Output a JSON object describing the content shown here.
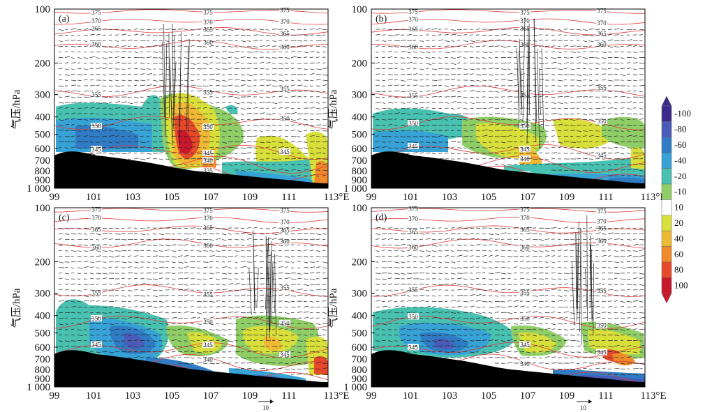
{
  "chart_data": {
    "type": "heatmap",
    "panels": [
      {
        "label": "(a)",
        "contour_labels": [
          "375",
          "370",
          "365",
          "360",
          "355",
          "350",
          "345",
          "340",
          "335"
        ]
      },
      {
        "label": "(b)",
        "contour_labels": [
          "375",
          "370",
          "365",
          "360",
          "355",
          "350",
          "345",
          "340",
          "335"
        ]
      },
      {
        "label": "(c)",
        "contour_labels": [
          "375",
          "370",
          "365",
          "360",
          "355",
          "350",
          "345",
          "340",
          "335"
        ]
      },
      {
        "label": "(d)",
        "contour_labels": [
          "375",
          "370",
          "365",
          "360",
          "355",
          "350",
          "345",
          "340",
          "335"
        ]
      }
    ],
    "x_ticks": [
      "99",
      "101",
      "103",
      "105",
      "107",
      "109",
      "111",
      "113°E"
    ],
    "x_values": [
      99,
      101,
      103,
      105,
      107,
      109,
      111,
      113
    ],
    "xlim": [
      99,
      113
    ],
    "y_ticks": [
      "100",
      "200",
      "300",
      "400",
      "500",
      "600",
      "700",
      "800",
      "900",
      "1 000"
    ],
    "y_values": [
      100,
      200,
      300,
      400,
      500,
      600,
      700,
      800,
      900,
      1000
    ],
    "ylim": [
      100,
      1000
    ],
    "y_scale": "log",
    "ylabel": "气压/hPa",
    "colorbar": {
      "labels": [
        "-100",
        "-80",
        "-60",
        "-40",
        "-20",
        "-10",
        "10",
        "20",
        "40",
        "60",
        "80",
        "100"
      ],
      "colors": [
        "#3b2a8c",
        "#4a5bb8",
        "#2f7cc4",
        "#36a2d6",
        "#49c1b1",
        "#8fce67",
        "#ffffff",
        "#d8df3a",
        "#f0b935",
        "#f08a2a",
        "#e6492a",
        "#c8182c"
      ]
    },
    "reference_vector": "10",
    "colors": {
      "contour": "#e03a3a",
      "terrain": "#000000",
      "vector": "#222222"
    }
  }
}
